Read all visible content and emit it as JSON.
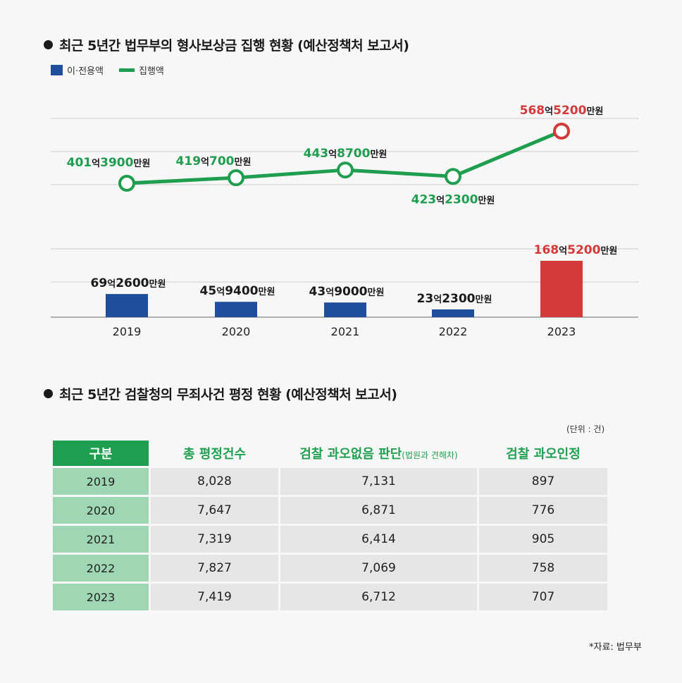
{
  "chart1": {
    "title": "최근 5년간 법무부의 형사보상금 집행 현황 (예산정책처 보고서)",
    "legend": {
      "bar_label": "이·전용액",
      "line_label": "집행액"
    },
    "unit_man": "만원",
    "unit_eok": "억"
  },
  "chart_data": {
    "type": "bar+line",
    "title": "최근 5년간 법무부의 형사보상금 집행 현황 (예산정책처 보고서)",
    "categories": [
      "2019",
      "2020",
      "2021",
      "2022",
      "2023"
    ],
    "series": [
      {
        "name": "이·전용액",
        "type": "bar",
        "unit": "만원",
        "values": [
          692600,
          459400,
          439000,
          232300,
          1685200
        ],
        "labels": [
          {
            "eok": "69",
            "man": "2600"
          },
          {
            "eok": "45",
            "man": "9400"
          },
          {
            "eok": "43",
            "man": "9000"
          },
          {
            "eok": "23",
            "man": "2300"
          },
          {
            "eok": "168",
            "man": "5200"
          }
        ],
        "colors": [
          "#1f4e9c",
          "#1f4e9c",
          "#1f4e9c",
          "#1f4e9c",
          "#d43a3a"
        ]
      },
      {
        "name": "집행액",
        "type": "line",
        "unit": "만원",
        "values": [
          4013900,
          4190700,
          4438700,
          4232300,
          5685200
        ],
        "labels": [
          {
            "eok": "401",
            "man": "3900"
          },
          {
            "eok": "419",
            "man": "700"
          },
          {
            "eok": "443",
            "man": "8700"
          },
          {
            "eok": "423",
            "man": "2300"
          },
          {
            "eok": "568",
            "man": "5200"
          }
        ],
        "color": "#1e9e4e",
        "highlight_color": "#d43a3a"
      }
    ],
    "grid": true
  },
  "table": {
    "title": "최근 5년간 검찰청의 무죄사건 평정 현황 (예산정책처 보고서)",
    "unit_note": "(단위 : 건)",
    "headers": [
      "구분",
      "총 평정건수",
      "검찰 과오없음 판단",
      "검찰 과오인정"
    ],
    "header_note": "(법원과 견해차)",
    "rows": [
      [
        "2019",
        "8,028",
        "7,131",
        "897"
      ],
      [
        "2020",
        "7,647",
        "6,871",
        "776"
      ],
      [
        "2021",
        "7,319",
        "6,414",
        "905"
      ],
      [
        "2022",
        "7,827",
        "7,069",
        "758"
      ],
      [
        "2023",
        "7,419",
        "6,712",
        "707"
      ]
    ]
  },
  "source": "*자료: 법무부"
}
